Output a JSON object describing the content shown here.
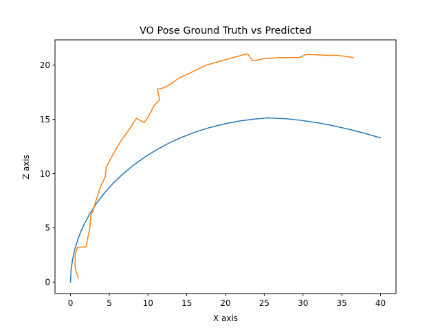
{
  "chart_data": {
    "type": "line",
    "title": "VO Pose Ground Truth vs Predicted",
    "xlabel": "X axis",
    "ylabel": "Z axis",
    "xlim": [
      -2.0,
      42.0
    ],
    "ylim": [
      -1.06,
      22.33
    ],
    "xticks": [
      0,
      5,
      10,
      15,
      20,
      25,
      30,
      35,
      40
    ],
    "yticks": [
      0,
      5,
      10,
      15,
      20
    ],
    "grid": false,
    "legend": "none",
    "series": [
      {
        "color": "#1f77b4",
        "points": [
          [
            0.0,
            0.0
          ],
          [
            0.07,
            1.07
          ],
          [
            0.28,
            2.14
          ],
          [
            0.62,
            3.2
          ],
          [
            1.1,
            4.24
          ],
          [
            1.71,
            5.26
          ],
          [
            2.46,
            6.26
          ],
          [
            3.33,
            7.23
          ],
          [
            4.33,
            8.17
          ],
          [
            5.45,
            9.07
          ],
          [
            6.69,
            9.92
          ],
          [
            8.03,
            10.72
          ],
          [
            9.47,
            11.47
          ],
          [
            11.01,
            12.16
          ],
          [
            12.64,
            12.79
          ],
          [
            14.35,
            13.35
          ],
          [
            16.13,
            13.84
          ],
          [
            17.98,
            14.25
          ],
          [
            19.88,
            14.59
          ],
          [
            21.82,
            14.85
          ],
          [
            23.79,
            15.03
          ],
          [
            25.44,
            15.14
          ],
          [
            25.8,
            15.13
          ],
          [
            27.8,
            15.06
          ],
          [
            29.8,
            14.91
          ],
          [
            31.8,
            14.7
          ],
          [
            33.8,
            14.43
          ],
          [
            35.8,
            14.11
          ],
          [
            37.8,
            13.74
          ],
          [
            40.0,
            13.3
          ]
        ]
      },
      {
        "color": "#ff7f0e",
        "points": [
          [
            1.0,
            0.4
          ],
          [
            0.6,
            1.3
          ],
          [
            0.6,
            2.5
          ],
          [
            0.9,
            3.2
          ],
          [
            2.0,
            3.25
          ],
          [
            2.5,
            5.0
          ],
          [
            2.6,
            6.1
          ],
          [
            3.0,
            6.8
          ],
          [
            3.5,
            8.0
          ],
          [
            4.0,
            9.0
          ],
          [
            4.5,
            9.7
          ],
          [
            4.6,
            10.6
          ],
          [
            5.5,
            11.8
          ],
          [
            6.5,
            13.0
          ],
          [
            7.5,
            14.0
          ],
          [
            8.5,
            15.1
          ],
          [
            9.5,
            14.7
          ],
          [
            10.0,
            15.2
          ],
          [
            10.8,
            16.3
          ],
          [
            11.5,
            16.8
          ],
          [
            11.2,
            17.8
          ],
          [
            12.0,
            17.9
          ],
          [
            13.0,
            18.3
          ],
          [
            14.0,
            18.8
          ],
          [
            15.5,
            19.3
          ],
          [
            17.5,
            20.0
          ],
          [
            19.0,
            20.3
          ],
          [
            20.5,
            20.6
          ],
          [
            22.5,
            21.0
          ],
          [
            22.9,
            21.0
          ],
          [
            23.5,
            20.4
          ],
          [
            25.0,
            20.6
          ],
          [
            27.0,
            20.7
          ],
          [
            29.5,
            20.7
          ],
          [
            30.5,
            21.0
          ],
          [
            33.0,
            20.9
          ],
          [
            34.5,
            20.9
          ],
          [
            36.5,
            20.7
          ]
        ]
      }
    ]
  }
}
